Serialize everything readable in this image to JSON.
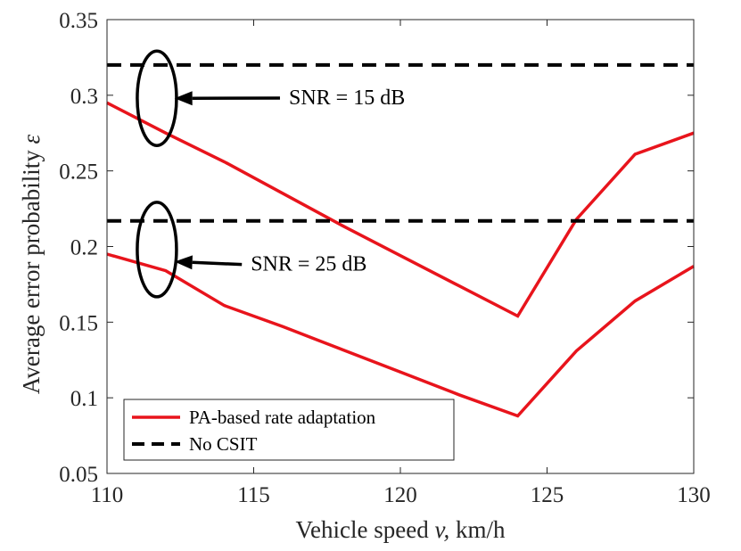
{
  "chart_data": {
    "type": "line",
    "title": "",
    "xlabel": "Vehicle speed",
    "xlabel_symbol": "v,",
    "xlabel_unit": "km/h",
    "ylabel": "Average error probability",
    "ylabel_symbol": "ε",
    "xlim": [
      110,
      130
    ],
    "ylim": [
      0.05,
      0.35
    ],
    "xticks": [
      110,
      115,
      120,
      125,
      130
    ],
    "xtick_labels": [
      "110",
      "115",
      "120",
      "125",
      "130"
    ],
    "yticks": [
      0.05,
      0.1,
      0.15,
      0.2,
      0.25,
      0.3,
      0.35
    ],
    "ytick_labels": [
      "0.05",
      "0.1",
      "0.15",
      "0.2",
      "0.25",
      "0.3",
      "0.35"
    ],
    "grid": false,
    "legend_position": "bottom-left",
    "series": [
      {
        "name": "PA-based rate adaptation",
        "condition": "SNR = 15 dB",
        "style": "solid",
        "color": "#e8141c",
        "x": [
          110,
          112,
          114,
          116,
          118,
          120,
          122,
          124,
          126,
          128,
          130
        ],
        "y": [
          0.295,
          0.275,
          0.256,
          0.235,
          0.214,
          0.194,
          0.174,
          0.154,
          0.218,
          0.261,
          0.275
        ]
      },
      {
        "name": "PA-based rate adaptation",
        "condition": "SNR = 25 dB",
        "style": "solid",
        "color": "#e8141c",
        "x": [
          110,
          112,
          114,
          116,
          118,
          120,
          122,
          124,
          126,
          128,
          130
        ],
        "y": [
          0.195,
          0.184,
          0.161,
          0.147,
          0.132,
          0.117,
          0.102,
          0.088,
          0.131,
          0.164,
          0.187
        ]
      },
      {
        "name": "No CSIT",
        "condition": "SNR = 15 dB",
        "style": "dashed",
        "color": "#000000",
        "x": [
          110,
          130
        ],
        "y": [
          0.32,
          0.32
        ]
      },
      {
        "name": "No CSIT",
        "condition": "SNR = 25 dB",
        "style": "dashed",
        "color": "#000000",
        "x": [
          110,
          130
        ],
        "y": [
          0.217,
          0.217
        ]
      }
    ],
    "annotations": [
      {
        "text": "SNR = 15 dB",
        "ellipse_center": [
          111.7,
          0.298
        ],
        "arrow_tip": [
          112.3,
          0.298
        ],
        "text_anchor": [
          116.2,
          0.294
        ]
      },
      {
        "text": "SNR = 25 dB",
        "ellipse_center": [
          111.7,
          0.198
        ],
        "arrow_tip": [
          112.3,
          0.19
        ],
        "text_anchor": [
          114.9,
          0.184
        ]
      }
    ],
    "legend": [
      {
        "label": "PA-based rate adaptation",
        "style": "solid",
        "color": "#e8141c"
      },
      {
        "label": "No CSIT",
        "style": "dashed",
        "color": "#000000"
      }
    ]
  }
}
